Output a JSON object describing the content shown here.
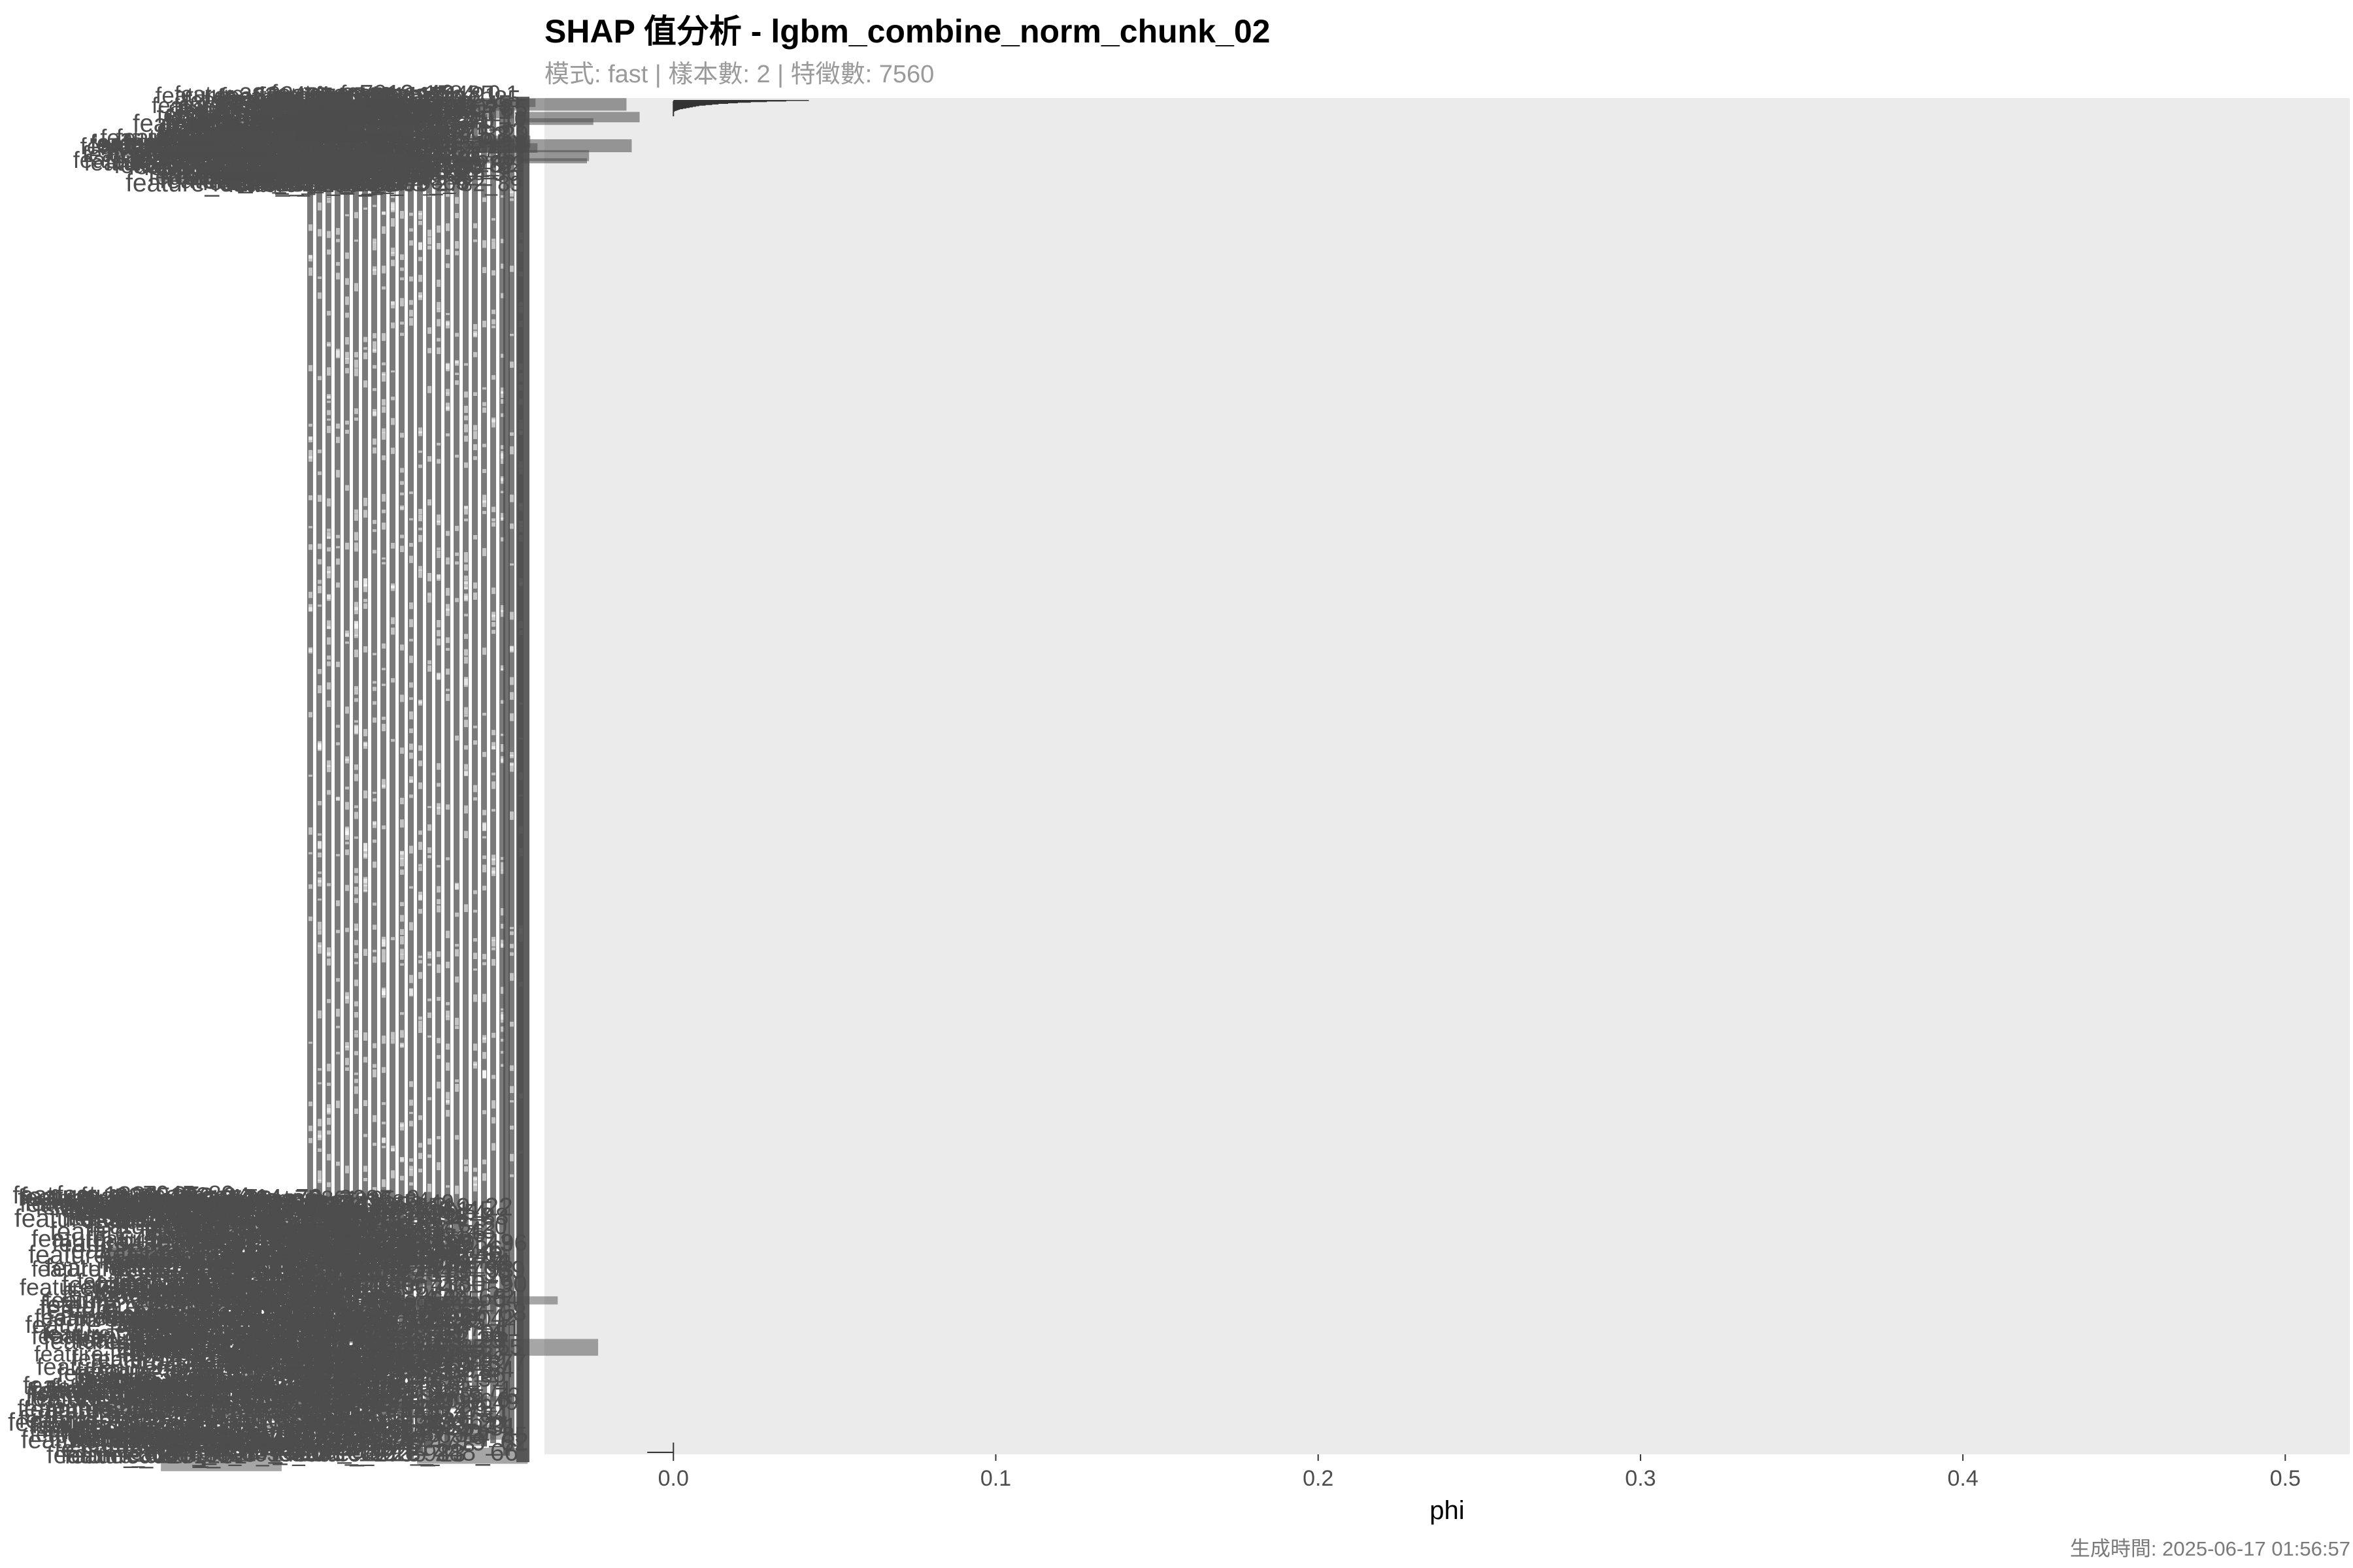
{
  "chart_data": {
    "type": "bar",
    "title": "SHAP 值分析 - lgbm_combine_norm_chunk_02",
    "subtitle": "模式: fast | 樣本數: 2 | 特徵數: 7560",
    "caption": "生成時間: 2025-06-17 01:56:57",
    "xlabel": "phi",
    "ylabel": "",
    "xlim": [
      -0.04,
      0.52
    ],
    "x_ticks": [
      0.0,
      0.1,
      0.2,
      0.3,
      0.4,
      0.5
    ],
    "x_tick_labels": [
      "0.0",
      "0.1",
      "0.2",
      "0.3",
      "0.4",
      "0.5"
    ],
    "grid": false,
    "legend": "none",
    "feature_label_prefix": "feature",
    "feature_count": 7560,
    "colors": {
      "panel_background": "#ebebeb",
      "label_ink": "#4d4d4d",
      "bar": "#333333"
    },
    "series": [
      {
        "values": [
          0.042,
          0.035,
          0.029,
          0.024,
          0.02,
          0.017,
          0.014,
          0.012,
          0.01,
          0.008,
          0.007,
          0.006,
          0.005,
          0.004,
          0.003,
          0.002,
          0.0015,
          0.001,
          0.0005,
          0.0
        ]
      }
    ]
  }
}
